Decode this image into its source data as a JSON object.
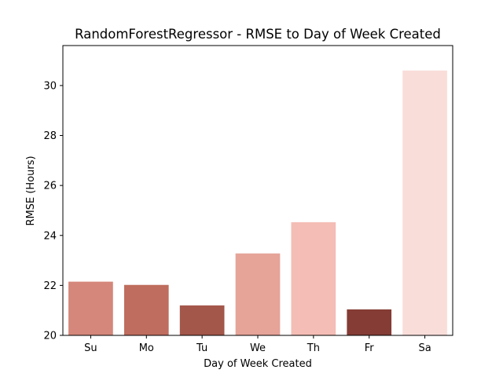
{
  "chart_data": {
    "type": "bar",
    "title": "RandomForestRegressor - RMSE to Day of Week Created",
    "xlabel": "Day of Week Created",
    "ylabel": "RMSE (Hours)",
    "categories": [
      "Su",
      "Mo",
      "Tu",
      "We",
      "Th",
      "Fr",
      "Sa"
    ],
    "values": [
      22.15,
      22.02,
      21.2,
      23.28,
      24.53,
      21.04,
      30.6
    ],
    "colors": [
      "#d4877a",
      "#bf6d5e",
      "#a3564a",
      "#e6a398",
      "#f4bdb5",
      "#843c35",
      "#f9ddd9"
    ],
    "ylim": [
      20,
      31.6
    ],
    "yticks": [
      20,
      22,
      24,
      26,
      28,
      30
    ],
    "grid": false
  }
}
